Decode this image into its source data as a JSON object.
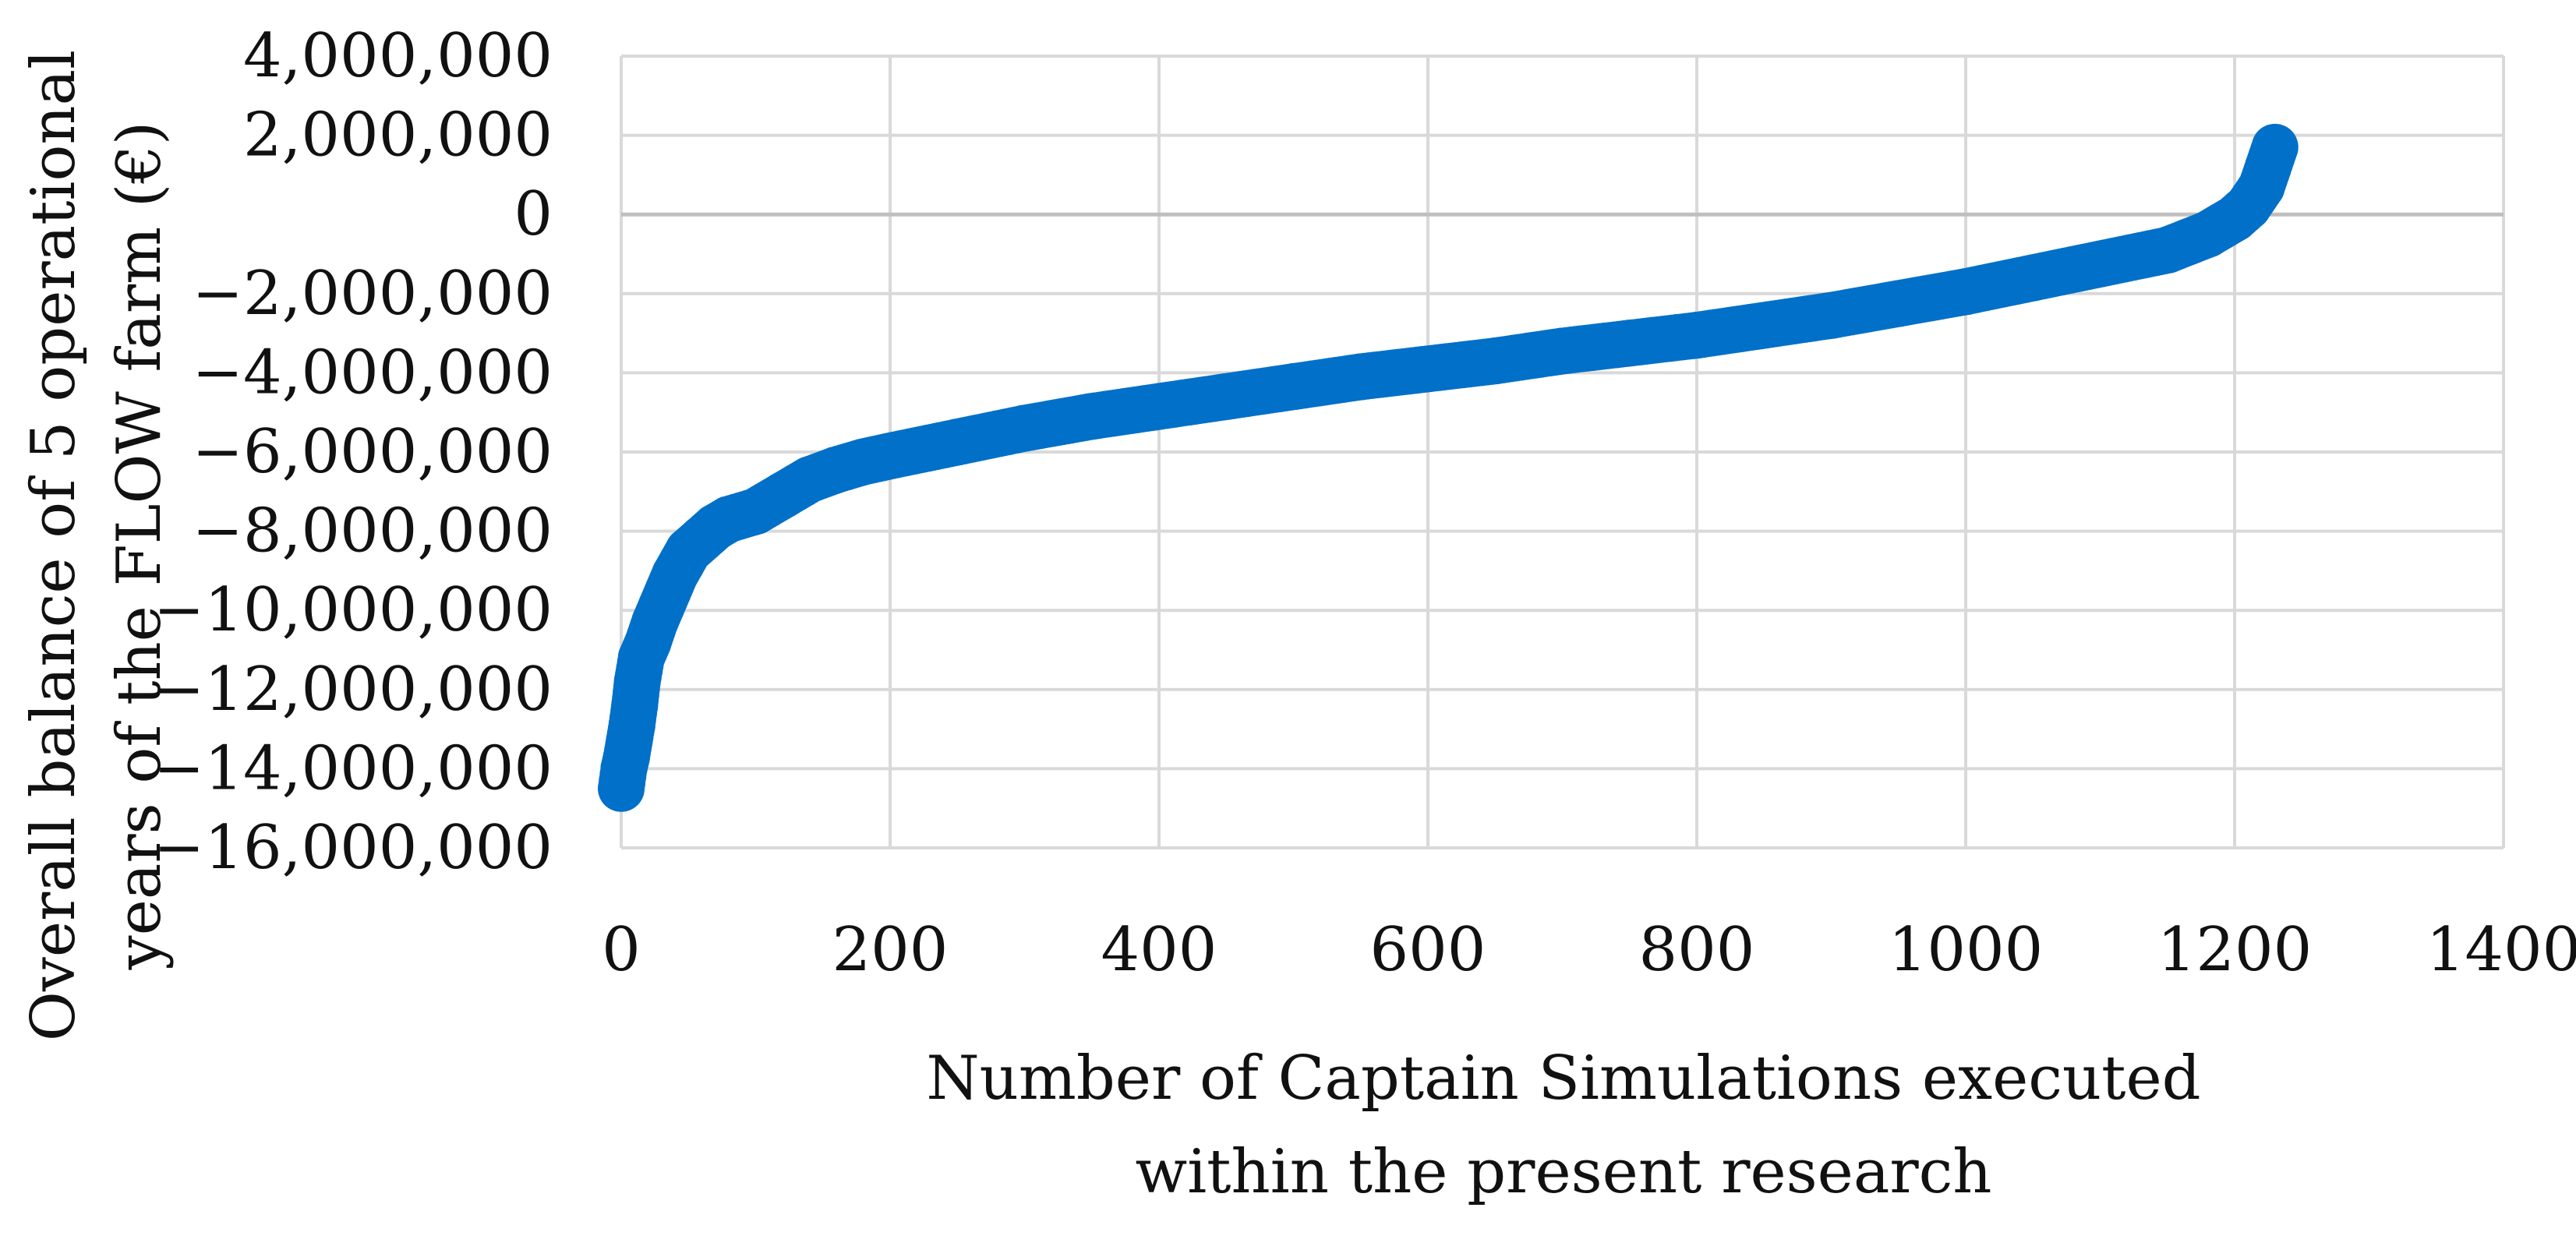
{
  "chart_data": {
    "type": "scatter",
    "title": "",
    "xlabel_lines": [
      "Number of Captain Simulations executed",
      "within the present research"
    ],
    "ylabel_lines": [
      "Overall balance of 5 operational",
      "years of the FLOW farm (€)"
    ],
    "xlim": [
      0,
      1400
    ],
    "ylim": [
      -16000000,
      4000000
    ],
    "x_ticks": [
      0,
      200,
      400,
      600,
      800,
      1000,
      1200,
      1400
    ],
    "y_ticks": [
      4000000,
      2000000,
      0,
      -2000000,
      -4000000,
      -6000000,
      -8000000,
      -10000000,
      -12000000,
      -14000000,
      -16000000
    ],
    "x_tick_labels": [
      "0",
      "200",
      "400",
      "600",
      "800",
      "1000",
      "1200",
      "1400"
    ],
    "y_tick_labels": [
      "4,000,000",
      "2,000,000",
      "0",
      "−2,000,000",
      "−4,000,000",
      "−6,000,000",
      "−8,000,000",
      "−10,000,000",
      "−12,000,000",
      "−14,000,000",
      "−16,000,000"
    ],
    "grid": true,
    "legend": "none",
    "series_color": "#0070C9",
    "grid_color": "#d9d9d9",
    "zero_line_color": "#bfbfbf",
    "series": [
      {
        "points": [
          [
            0,
            -14500000
          ],
          [
            2,
            -14000000
          ],
          [
            4,
            -13700000
          ],
          [
            6,
            -13300000
          ],
          [
            8,
            -12900000
          ],
          [
            10,
            -12400000
          ],
          [
            12,
            -11800000
          ],
          [
            15,
            -11200000
          ],
          [
            20,
            -10800000
          ],
          [
            25,
            -10300000
          ],
          [
            30,
            -9900000
          ],
          [
            35,
            -9500000
          ],
          [
            40,
            -9100000
          ],
          [
            45,
            -8800000
          ],
          [
            50,
            -8500000
          ],
          [
            60,
            -8200000
          ],
          [
            70,
            -7900000
          ],
          [
            80,
            -7700000
          ],
          [
            100,
            -7500000
          ],
          [
            120,
            -7100000
          ],
          [
            140,
            -6700000
          ],
          [
            160,
            -6450000
          ],
          [
            180,
            -6250000
          ],
          [
            200,
            -6100000
          ],
          [
            250,
            -5750000
          ],
          [
            300,
            -5400000
          ],
          [
            350,
            -5100000
          ],
          [
            400,
            -4850000
          ],
          [
            450,
            -4600000
          ],
          [
            500,
            -4350000
          ],
          [
            550,
            -4100000
          ],
          [
            600,
            -3900000
          ],
          [
            650,
            -3700000
          ],
          [
            700,
            -3450000
          ],
          [
            750,
            -3250000
          ],
          [
            800,
            -3050000
          ],
          [
            850,
            -2800000
          ],
          [
            900,
            -2550000
          ],
          [
            950,
            -2250000
          ],
          [
            1000,
            -1950000
          ],
          [
            1050,
            -1600000
          ],
          [
            1100,
            -1250000
          ],
          [
            1150,
            -900000
          ],
          [
            1180,
            -500000
          ],
          [
            1200,
            -100000
          ],
          [
            1210,
            200000
          ],
          [
            1220,
            700000
          ],
          [
            1225,
            1200000
          ],
          [
            1230,
            1700000
          ]
        ]
      }
    ]
  }
}
